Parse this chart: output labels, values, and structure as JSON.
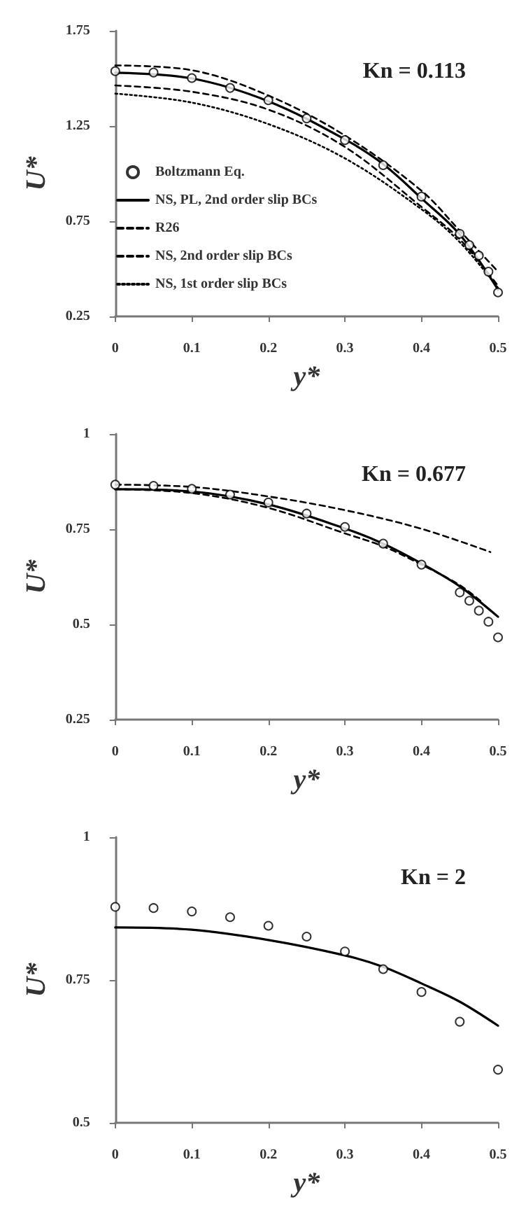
{
  "chart_data": [
    {
      "type": "line",
      "title": "Kn = 0.113",
      "xlabel": "y*",
      "ylabel": "U*",
      "xlim": [
        0,
        0.5
      ],
      "xticks": [
        0,
        0.1,
        0.2,
        0.3,
        0.4,
        0.5
      ],
      "ylim": [
        0.25,
        1.75
      ],
      "yticks": [
        0.25,
        0.75,
        1.25,
        1.75
      ],
      "grid": false,
      "legend": "left",
      "series": [
        {
          "name": "Boltzmann Eq.",
          "type": "scatter",
          "marker": "circle",
          "color": "#000000",
          "x": [
            0,
            0.05,
            0.1,
            0.15,
            0.2,
            0.25,
            0.3,
            0.35,
            0.4,
            0.45,
            0.4625,
            0.475,
            0.4875,
            0.5
          ],
          "values": [
            1.538,
            1.531,
            1.502,
            1.45,
            1.385,
            1.29,
            1.176,
            1.044,
            0.879,
            0.684,
            0.625,
            0.57,
            0.485,
            0.376
          ]
        },
        {
          "name": "NS, PL, 2nd order slip BCs",
          "marker": "none",
          "line_style": "solid",
          "color": "#000000",
          "x": [
            0,
            0.1,
            0.2,
            0.3,
            0.35,
            0.4,
            0.45,
            0.5
          ],
          "values": [
            1.53,
            1.5,
            1.38,
            1.18,
            1.05,
            0.87,
            0.68,
            0.39
          ]
        },
        {
          "name": "R26",
          "marker": "none",
          "line_style": "dashed",
          "color": "#000000",
          "x": [
            0,
            0.1,
            0.2,
            0.3,
            0.4,
            0.45,
            0.5
          ],
          "values": [
            1.568,
            1.543,
            1.41,
            1.2,
            0.91,
            0.7,
            0.485
          ]
        },
        {
          "name": "NS, 2nd order slip BCs",
          "marker": "none",
          "line_style": "dashed",
          "color": "#000000",
          "x": [
            0,
            0.1,
            0.2,
            0.3,
            0.4,
            0.45,
            0.5
          ],
          "values": [
            1.463,
            1.43,
            1.336,
            1.14,
            0.825,
            0.655,
            0.41
          ]
        },
        {
          "name": "NS, 1st order slip BCs",
          "marker": "none",
          "line_style": "dotted",
          "color": "#000000",
          "x": [
            0,
            0.1,
            0.2,
            0.3,
            0.4,
            0.45,
            0.5
          ],
          "values": [
            1.42,
            1.373,
            1.26,
            1.08,
            0.813,
            0.64,
            0.4
          ]
        }
      ]
    },
    {
      "type": "line",
      "title": "Kn = 0.677",
      "xlabel": "y*",
      "ylabel": "U*",
      "xlim": [
        0,
        0.5
      ],
      "xticks": [
        0,
        0.1,
        0.2,
        0.3,
        0.4,
        0.5
      ],
      "ylim": [
        0.25,
        1
      ],
      "yticks": [
        0.25,
        0.5,
        0.75,
        1
      ],
      "grid": false,
      "series": [
        {
          "type": "scatter",
          "marker": "circle",
          "color": "#000000",
          "x": [
            0,
            0.05,
            0.1,
            0.15,
            0.2,
            0.25,
            0.3,
            0.35,
            0.4,
            0.45,
            0.4625,
            0.475,
            0.4875,
            0.5
          ],
          "values": [
            0.867,
            0.864,
            0.856,
            0.841,
            0.82,
            0.791,
            0.756,
            0.712,
            0.657,
            0.584,
            0.562,
            0.536,
            0.507,
            0.466
          ]
        },
        {
          "marker": "none",
          "line_style": "solid",
          "color": "#000000",
          "x": [
            0,
            0.1,
            0.2,
            0.3,
            0.35,
            0.4,
            0.45,
            0.5
          ],
          "values": [
            0.855,
            0.849,
            0.815,
            0.752,
            0.712,
            0.66,
            0.6,
            0.52
          ]
        },
        {
          "marker": "none",
          "line_style": "dashed",
          "color": "#000000",
          "x": [
            0,
            0.1,
            0.2,
            0.3,
            0.4,
            0.49
          ],
          "values": [
            0.867,
            0.861,
            0.836,
            0.8,
            0.751,
            0.69
          ]
        },
        {
          "marker": "none",
          "line_style": "dashed",
          "color": "#000000",
          "x": [
            0,
            0.1,
            0.2,
            0.3,
            0.35,
            0.4,
            0.45,
            0.48
          ],
          "values": [
            0.855,
            0.845,
            0.806,
            0.739,
            0.705,
            0.657,
            0.603,
            0.557
          ]
        }
      ]
    },
    {
      "type": "line",
      "title": "Kn = 2",
      "xlabel": "y*",
      "ylabel": "U*",
      "xlim": [
        0,
        0.5
      ],
      "xticks": [
        0,
        0.1,
        0.2,
        0.3,
        0.4,
        0.5
      ],
      "ylim": [
        0.5,
        1
      ],
      "yticks": [
        0.5,
        0.75,
        1
      ],
      "grid": false,
      "series": [
        {
          "type": "scatter",
          "marker": "circle",
          "color": "#000000",
          "x": [
            0,
            0.05,
            0.1,
            0.15,
            0.2,
            0.25,
            0.3,
            0.35,
            0.4,
            0.45,
            0.5
          ],
          "values": [
            0.878,
            0.876,
            0.87,
            0.86,
            0.845,
            0.826,
            0.8,
            0.769,
            0.729,
            0.677,
            0.593
          ]
        },
        {
          "marker": "none",
          "line_style": "solid",
          "color": "#000000",
          "x": [
            0,
            0.1,
            0.2,
            0.3,
            0.35,
            0.4,
            0.45,
            0.5
          ],
          "values": [
            0.842,
            0.838,
            0.82,
            0.793,
            0.773,
            0.744,
            0.712,
            0.67
          ]
        }
      ]
    }
  ]
}
